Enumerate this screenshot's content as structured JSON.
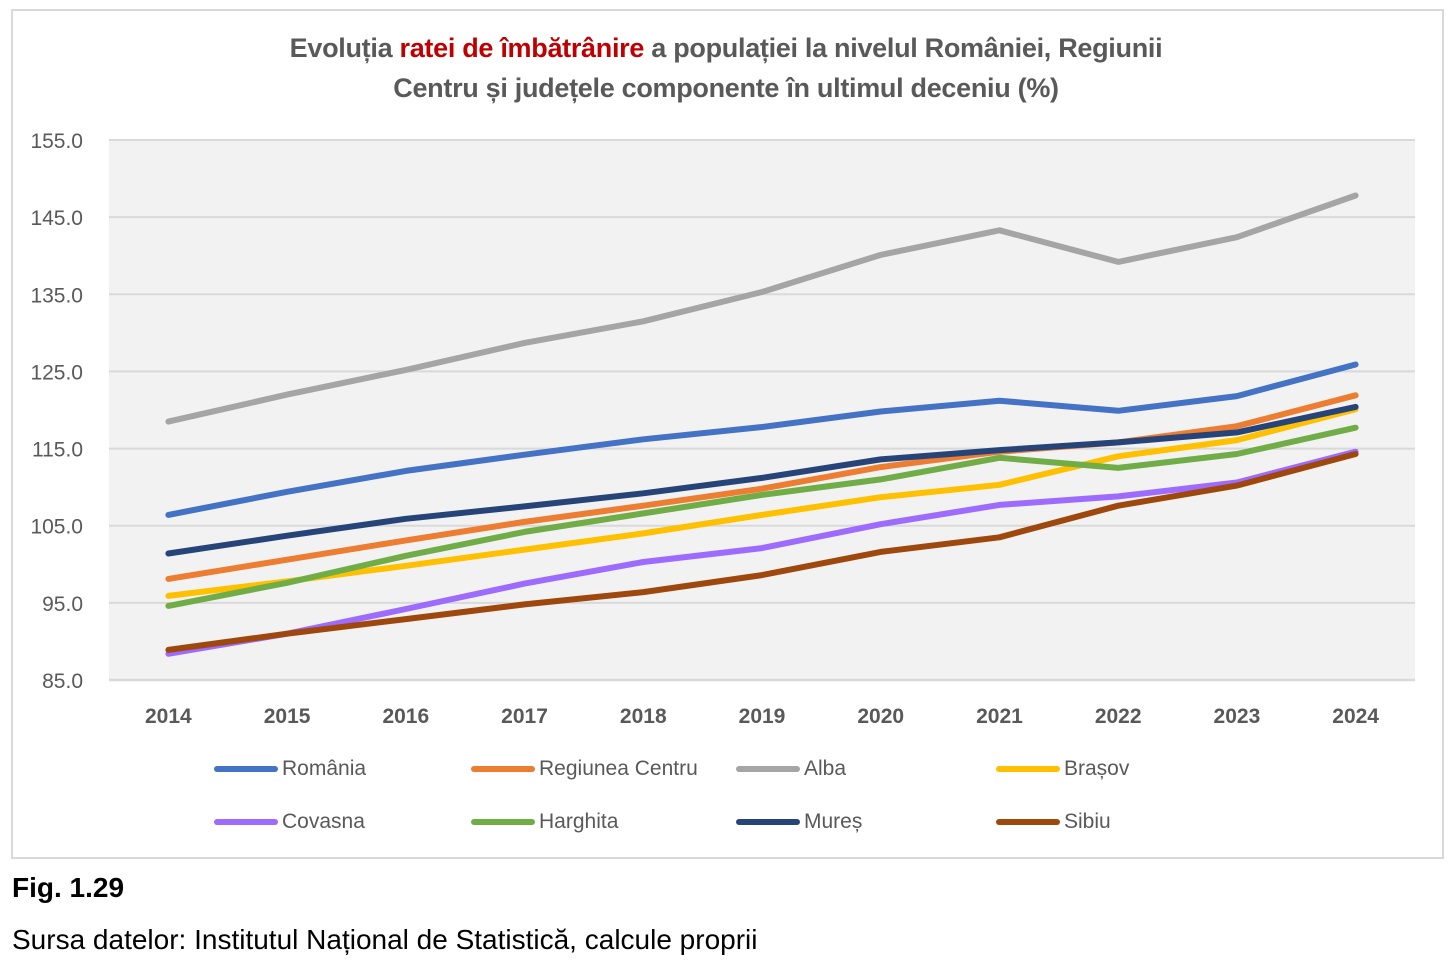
{
  "chart_data": {
    "type": "line",
    "title_parts": [
      {
        "text": "Evoluția ",
        "highlight": false
      },
      {
        "text": "ratei de îmbătrânire",
        "highlight": true
      },
      {
        "text": " a populației la nivelul României, Regiunii",
        "highlight": false
      }
    ],
    "title_line2": "Centru și județele componente în ultimul deceniu (%)",
    "title": "Evoluția ratei de îmbătrânire a populației la nivelul României, Regiunii Centru și județele componente în ultimul deceniu (%)",
    "xlabel": "",
    "ylabel": "",
    "x": [
      "2014",
      "2015",
      "2016",
      "2017",
      "2018",
      "2019",
      "2020",
      "2021",
      "2022",
      "2023",
      "2024"
    ],
    "ylim": [
      85,
      155
    ],
    "yticks": [
      "85.0",
      "95.0",
      "105.0",
      "115.0",
      "125.0",
      "135.0",
      "145.0",
      "155.0"
    ],
    "ytick_values": [
      85,
      95,
      105,
      115,
      125,
      135,
      145,
      155
    ],
    "grid": true,
    "legend_position": "bottom",
    "series": [
      {
        "name": "România",
        "color": "#4472c4",
        "values": [
          106.4,
          109.4,
          112.1,
          114.2,
          116.2,
          117.8,
          119.8,
          121.2,
          119.9,
          121.8,
          125.9
        ]
      },
      {
        "name": "Regiunea Centru",
        "color": "#ed7d31",
        "values": [
          98.1,
          100.6,
          103.1,
          105.5,
          107.6,
          109.8,
          112.6,
          114.6,
          115.8,
          117.9,
          121.9
        ]
      },
      {
        "name": "Alba",
        "color": "#a5a5a5",
        "values": [
          118.5,
          122.0,
          125.2,
          128.7,
          131.5,
          135.3,
          140.1,
          143.3,
          139.2,
          142.4,
          147.8
        ]
      },
      {
        "name": "Brașov",
        "color": "#ffc000",
        "values": [
          95.9,
          97.8,
          99.8,
          101.9,
          104.0,
          106.4,
          108.7,
          110.3,
          114.0,
          116.1,
          120.1
        ]
      },
      {
        "name": "Covasna",
        "color": "#9e6bff",
        "values": [
          88.4,
          91.0,
          94.2,
          97.5,
          100.3,
          102.1,
          105.2,
          107.7,
          108.8,
          110.6,
          114.6
        ]
      },
      {
        "name": "Harghita",
        "color": "#70ad47",
        "values": [
          94.6,
          97.6,
          101.1,
          104.2,
          106.6,
          109.0,
          111.0,
          113.8,
          112.5,
          114.3,
          117.7
        ]
      },
      {
        "name": "Mureș",
        "color": "#264478",
        "values": [
          101.4,
          103.7,
          105.9,
          107.5,
          109.2,
          111.2,
          113.6,
          114.8,
          115.8,
          117.1,
          120.4
        ]
      },
      {
        "name": "Sibiu",
        "color": "#9e480e",
        "values": [
          88.9,
          91.0,
          92.9,
          94.8,
          96.4,
          98.6,
          101.6,
          103.5,
          107.6,
          110.2,
          114.3
        ]
      }
    ]
  },
  "caption": {
    "figure_label": "Fig. 1.29",
    "source": "Sursa datelor: Institutul Național de Statistică, calcule proprii"
  }
}
